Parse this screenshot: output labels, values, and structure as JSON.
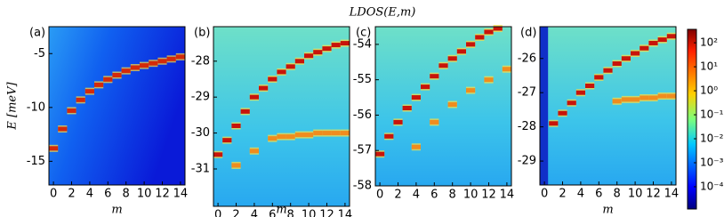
{
  "figure": {
    "title": "LDOS(E,m)",
    "colorbar": {
      "scale": "log",
      "lim": [
        1.18e-05,
        363
      ],
      "ticks": [
        {
          "value": 100,
          "label": "10²"
        },
        {
          "value": 10,
          "label": "10¹"
        },
        {
          "value": 1,
          "label": "10⁰"
        },
        {
          "value": 0.1,
          "label": "10⁻¹"
        },
        {
          "value": 0.01,
          "label": "10⁻²"
        },
        {
          "value": 0.001,
          "label": "10⁻³"
        },
        {
          "value": 0.0001,
          "label": "10⁻⁴"
        }
      ]
    }
  },
  "chart_data": [
    {
      "type": "heatmap",
      "panel_label": "(a)",
      "x_label": "m",
      "y_label": "E [meV]",
      "x": [
        0,
        1,
        2,
        3,
        4,
        5,
        6,
        7,
        8,
        9,
        10,
        11,
        12,
        13,
        14
      ],
      "xlim": [
        -0.5,
        14.5
      ],
      "xticks": [
        0,
        2,
        4,
        6,
        8,
        10,
        12,
        14
      ],
      "ylim": [
        -17.2,
        -2.5
      ],
      "yticks": [
        -5,
        -10,
        -15
      ],
      "series": [
        {
          "color": "#d42a0a",
          "values": [
            -13.8,
            -12,
            -10.3,
            -9.3,
            -8.5,
            -7.9,
            -7.4,
            -7.0,
            -6.6,
            -6.3,
            -6.1,
            -5.9,
            -5.7,
            -5.5,
            -5.3
          ]
        }
      ]
    },
    {
      "type": "heatmap",
      "panel_label": "(b)",
      "x_label": "m",
      "x": [
        0,
        1,
        2,
        3,
        4,
        5,
        6,
        7,
        8,
        9,
        10,
        11,
        12,
        13,
        14
      ],
      "xlim": [
        -0.5,
        14.5
      ],
      "xticks": [
        0,
        2,
        4,
        6,
        8,
        10,
        12,
        14
      ],
      "ylim": [
        -32.04,
        -27.04
      ],
      "yticks": [
        -28,
        -29,
        -30,
        -31
      ],
      "series": [
        {
          "color": "#c8140a",
          "values": [
            -30.6,
            -30.2,
            -29.8,
            -29.4,
            -29.0,
            -28.75,
            -28.5,
            -28.3,
            -28.15,
            -28.0,
            -27.85,
            -27.75,
            -27.65,
            -27.55,
            -27.5
          ]
        },
        {
          "color": "#f08c1e",
          "values": [
            null,
            null,
            -30.9,
            null,
            -30.5,
            null,
            -30.15,
            -30.1,
            -30.1,
            -30.05,
            -30.05,
            -30.0,
            -30.0,
            -30.0,
            -30.0
          ]
        }
      ]
    },
    {
      "type": "heatmap",
      "panel_label": "(c)",
      "x": [
        0,
        1,
        2,
        3,
        4,
        5,
        6,
        7,
        8,
        9,
        10,
        11,
        12,
        13,
        14
      ],
      "xlim": [
        -0.5,
        14.5
      ],
      "xticks": [
        0,
        2,
        4,
        6,
        8,
        10,
        12,
        14
      ],
      "ylim": [
        -58,
        -53.5
      ],
      "yticks": [
        -54,
        -55,
        -56,
        -57,
        -58
      ],
      "series": [
        {
          "color": "#c8140a",
          "values": [
            -57.1,
            -56.6,
            -56.2,
            -55.8,
            -55.5,
            -55.2,
            -54.9,
            -54.6,
            -54.4,
            -54.2,
            -54.0,
            -53.8,
            -53.65,
            -53.55,
            null
          ]
        },
        {
          "color": "#f08c1e",
          "values": [
            null,
            null,
            null,
            null,
            -56.9,
            null,
            -56.2,
            null,
            -55.7,
            null,
            -55.3,
            null,
            -55.0,
            null,
            -54.7
          ]
        }
      ]
    },
    {
      "type": "heatmap",
      "panel_label": "(d)",
      "x_label": "m",
      "x": [
        0,
        1,
        2,
        3,
        4,
        5,
        6,
        7,
        8,
        9,
        10,
        11,
        12,
        13,
        14
      ],
      "xlim": [
        -0.5,
        14.5
      ],
      "xticks": [
        0,
        2,
        4,
        6,
        8,
        10,
        12,
        14
      ],
      "ylim": [
        -29.7,
        -25.07
      ],
      "yticks": [
        -26,
        -27,
        -28,
        -29
      ],
      "series": [
        {
          "color": "#c8140a",
          "values": [
            null,
            -27.9,
            -27.6,
            -27.3,
            -27.0,
            -26.8,
            -26.55,
            -26.35,
            -26.15,
            -26.0,
            -25.85,
            -25.7,
            -25.55,
            -25.45,
            -25.35
          ]
        },
        {
          "color": "#f08c1e",
          "values": [
            null,
            null,
            null,
            null,
            null,
            null,
            null,
            null,
            -27.25,
            -27.2,
            -27.2,
            -27.15,
            -27.15,
            -27.1,
            -27.1
          ]
        }
      ]
    }
  ]
}
